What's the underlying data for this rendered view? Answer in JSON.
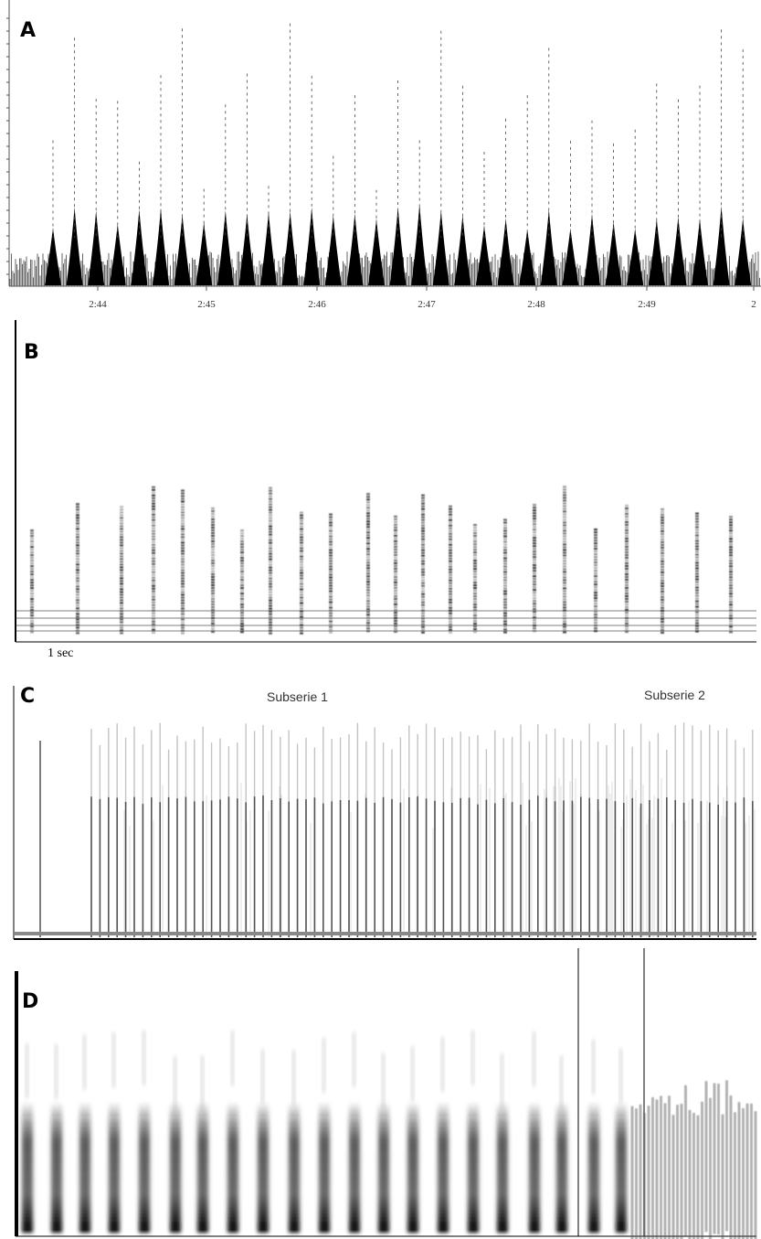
{
  "panels": [
    {
      "label": "A",
      "tick_labels": [
        "2:44",
        "2:45",
        "2:46",
        "2:47",
        "2:48",
        "2:49",
        "2"
      ]
    },
    {
      "label": "B",
      "scale_label": "1 sec"
    },
    {
      "label": "C",
      "annotations": [
        "Subserie 1",
        "Subserie 2"
      ]
    },
    {
      "label": "D"
    }
  ]
}
